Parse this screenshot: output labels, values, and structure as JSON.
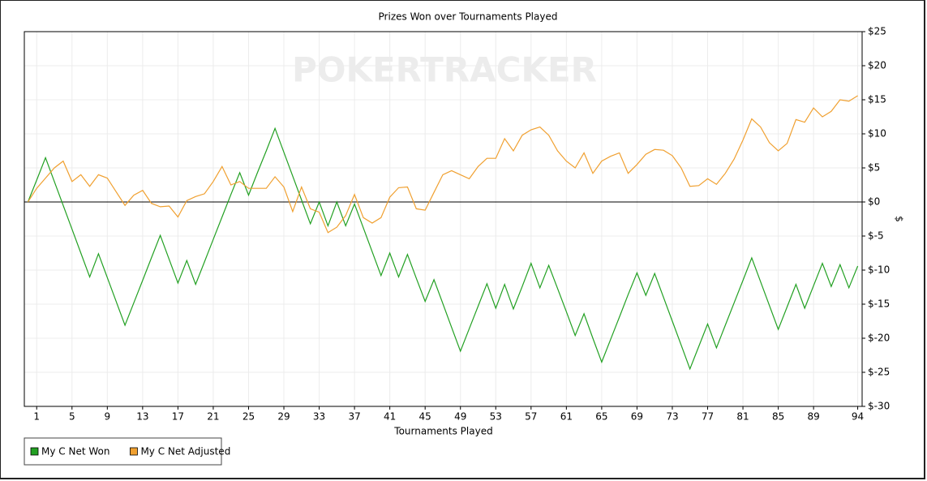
{
  "chart_data": {
    "type": "line",
    "title": "Prizes Won over Tournaments Played",
    "watermark": "POKERTRACKER",
    "x_label": "Tournaments Played",
    "y_label": "$",
    "x": [
      0,
      1,
      2,
      3,
      4,
      5,
      6,
      7,
      8,
      9,
      10,
      11,
      12,
      13,
      14,
      15,
      16,
      17,
      18,
      19,
      20,
      21,
      22,
      23,
      24,
      25,
      26,
      27,
      28,
      29,
      30,
      31,
      32,
      33,
      34,
      35,
      36,
      37,
      38,
      39,
      40,
      41,
      42,
      43,
      44,
      45,
      46,
      47,
      48,
      49,
      50,
      51,
      52,
      53,
      54,
      55,
      56,
      57,
      58,
      59,
      60,
      61,
      62,
      63,
      64,
      65,
      66,
      67,
      68,
      69,
      70,
      71,
      72,
      73,
      74,
      75,
      76,
      77,
      78,
      79,
      80,
      81,
      82,
      83,
      84,
      85,
      86,
      87,
      88,
      89,
      90,
      91,
      92,
      93,
      94
    ],
    "series": [
      {
        "name": "My C Net Won",
        "color": "#22a022",
        "values": [
          0,
          3.2,
          6.5,
          3.0,
          -0.5,
          -4.0,
          -7.5,
          -11,
          -7.6,
          -11.1,
          -14.6,
          -18.1,
          -14.8,
          -11.5,
          -8.2,
          -4.9,
          -8.4,
          -11.9,
          -8.6,
          -12.1,
          -8.8,
          -5.5,
          -2.2,
          1.1,
          4.3,
          1,
          4.3,
          7.5,
          10.8,
          7.3,
          3.8,
          0.3,
          -3.2,
          0,
          -3.5,
          0,
          -3.5,
          -0.3,
          -3.8,
          -7.3,
          -10.8,
          -7.5,
          -11,
          -7.7,
          -11.2,
          -14.6,
          -11.4,
          -14.9,
          -18.4,
          -21.9,
          -18.6,
          -15.3,
          -12,
          -15.6,
          -12.1,
          -15.7,
          -12.4,
          -9,
          -12.6,
          -9.3,
          -12.7,
          -16.1,
          -19.6,
          -16.4,
          -20,
          -23.5,
          -20.2,
          -16.9,
          -13.6,
          -10.4,
          -13.7,
          -10.5,
          -14,
          -17.5,
          -21,
          -24.5,
          -21.2,
          -17.9,
          -21.4,
          -18.1,
          -14.8,
          -11.5,
          -8.2,
          -11.7,
          -15.2,
          -18.7,
          -15.4,
          -12.1,
          -15.6,
          -12.3,
          -9,
          -12.4,
          -9.2,
          -12.6,
          -9.4
        ]
      },
      {
        "name": "My C Net Adjusted",
        "color": "#f0a030",
        "values": [
          0,
          2,
          3.5,
          5,
          6,
          3,
          4,
          2.3,
          4,
          3.5,
          1.5,
          -0.5,
          1,
          1.7,
          -0.2,
          -0.7,
          -0.6,
          -2.2,
          0.2,
          0.8,
          1.2,
          3,
          5.2,
          2.5,
          3,
          2,
          2,
          2,
          3.7,
          2.2,
          -1.4,
          2.2,
          -1,
          -1.5,
          -4.5,
          -3.7,
          -2,
          1.1,
          -2.3,
          -3.1,
          -2.3,
          0.7,
          2.1,
          2.2,
          -1,
          -1.2,
          1.4,
          4,
          4.6,
          4,
          3.4,
          5.2,
          6.4,
          6.4,
          9.3,
          7.5,
          9.8,
          10.6,
          11,
          9.8,
          7.5,
          6,
          5,
          7.2,
          4.2,
          6,
          6.7,
          7.2,
          4.2,
          5.5,
          7,
          7.7,
          7.6,
          6.8,
          5,
          2.3,
          2.4,
          3.4,
          2.6,
          4.2,
          6.3,
          9.1,
          12.2,
          11,
          8.7,
          7.5,
          8.6,
          12.1,
          11.7,
          13.8,
          12.5,
          13.3,
          15,
          14.8,
          15.6
        ]
      }
    ],
    "xlim": [
      -0.4,
      94.5
    ],
    "xticks": [
      1,
      5,
      9,
      13,
      17,
      21,
      25,
      29,
      33,
      37,
      41,
      45,
      49,
      53,
      57,
      61,
      65,
      69,
      73,
      77,
      81,
      85,
      89,
      94
    ],
    "ylim": [
      -30,
      25
    ],
    "yticks": [
      {
        "value": 25,
        "label": "$25"
      },
      {
        "value": 20,
        "label": "$20"
      },
      {
        "value": 15,
        "label": "$15"
      },
      {
        "value": 10,
        "label": "$10"
      },
      {
        "value": 5,
        "label": "$5"
      },
      {
        "value": 0,
        "label": "$0"
      },
      {
        "value": -5,
        "label": "$-5"
      },
      {
        "value": -10,
        "label": "$-10"
      },
      {
        "value": -15,
        "label": "$-15"
      },
      {
        "value": -20,
        "label": "$-20"
      },
      {
        "value": -25,
        "label": "$-25"
      },
      {
        "value": -30,
        "label": "$-30"
      }
    ],
    "grid": true,
    "y_axis_side": "right",
    "legend": "bottom-left"
  }
}
